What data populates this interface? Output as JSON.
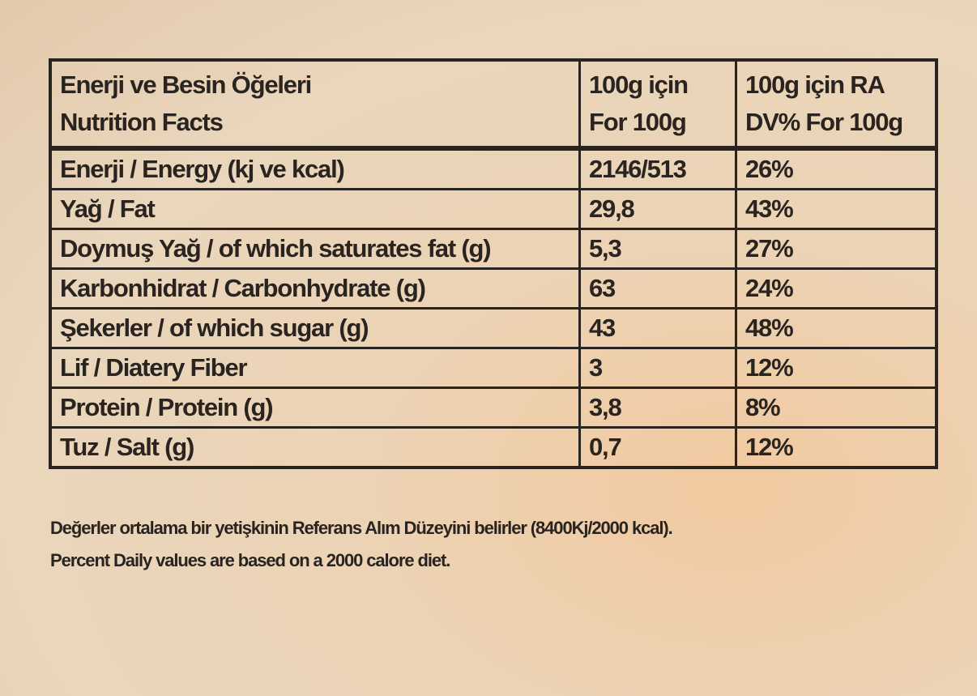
{
  "table": {
    "header": [
      [
        "Enerji ve Besin Öğeleri",
        "Nutrition Facts"
      ],
      [
        "100g için",
        "For 100g"
      ],
      [
        "100g için RA",
        "DV% For 100g"
      ]
    ],
    "rows": [
      [
        "Enerji / Energy (kj ve kcal)",
        "2146/513",
        "26%"
      ],
      [
        "Yağ / Fat",
        "29,8",
        "43%"
      ],
      [
        "Doymuş Yağ / of which saturates fat (g)",
        "5,3",
        "27%"
      ],
      [
        "Karbonhidrat / Carbonhydrate (g)",
        "63",
        "24%"
      ],
      [
        "Şekerler / of which sugar (g)",
        "43",
        "48%"
      ],
      [
        "Lif / Diatery Fiber",
        "3",
        "12%"
      ],
      [
        "Protein / Protein (g)",
        "3,8",
        "8%"
      ],
      [
        "Tuz / Salt (g)",
        "0,7",
        "12%"
      ]
    ]
  },
  "footnote": [
    "Değerler ortalama bir yetişkinin Referans Alım Düzeyini belirler (8400Kj/2000 kcal).",
    "Percent Daily values are based on a 2000 calore diet."
  ]
}
